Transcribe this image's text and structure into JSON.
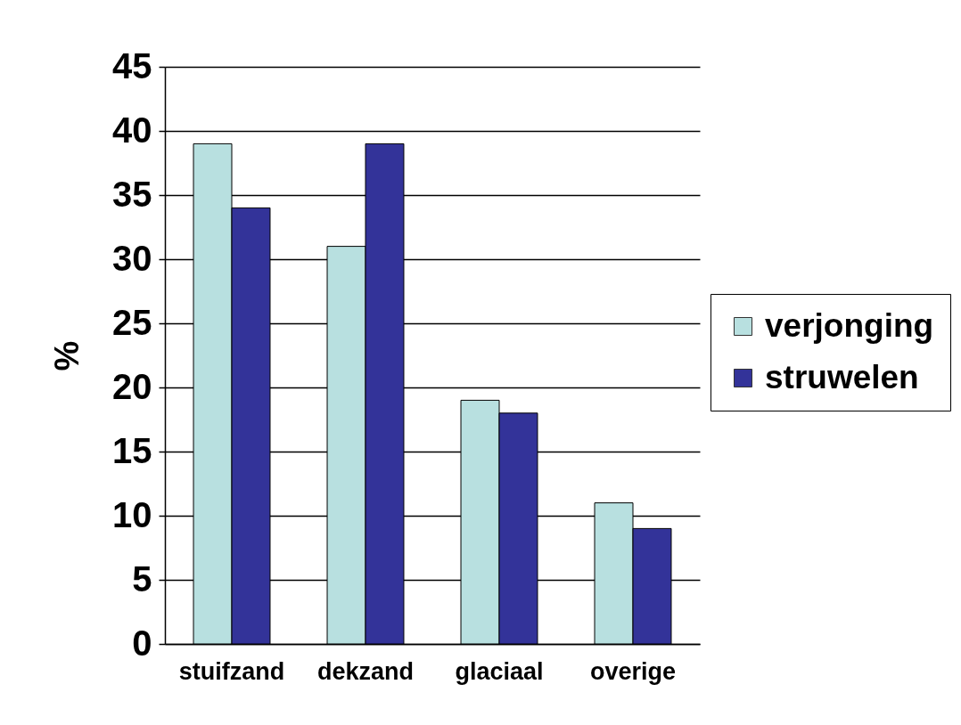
{
  "chart_data": {
    "type": "bar",
    "ylabel": "%",
    "categories": [
      "stuifzand",
      "dekzand",
      "glaciaal",
      "overige"
    ],
    "series": [
      {
        "name": "verjonging",
        "color": "#b8e0e0",
        "values": [
          39,
          31,
          19,
          11
        ]
      },
      {
        "name": "struwelen",
        "color": "#333399",
        "values": [
          34,
          39,
          18,
          9
        ]
      }
    ],
    "ylim": [
      0,
      45
    ],
    "yticks": [
      0,
      5,
      10,
      15,
      20,
      25,
      30,
      35,
      40,
      45
    ],
    "grid": "y",
    "legend": "right"
  }
}
